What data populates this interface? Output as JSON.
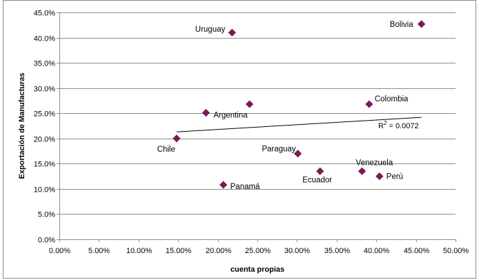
{
  "chart_data": {
    "type": "scatter",
    "xlabel": "cuenta propias",
    "ylabel": "Exportación de Manufacturas",
    "xlim": [
      0,
      0.5
    ],
    "ylim": [
      0,
      0.45
    ],
    "x_ticks": [
      "0.00%",
      "5.00%",
      "10.00%",
      "15.00%",
      "20.00%",
      "25.00%",
      "30.00%",
      "35.00%",
      "40.00%",
      "45.00%",
      "50.00%"
    ],
    "y_ticks": [
      "0.0%",
      "5.0%",
      "10.0%",
      "15.0%",
      "20.0%",
      "25.0%",
      "30.0%",
      "35.0%",
      "40.0%",
      "45.0%"
    ],
    "grid": {
      "horizontal": true,
      "vertical": false
    },
    "marker": {
      "shape": "diamond",
      "color": "#7b1a5a"
    },
    "points": [
      {
        "label": "Bolivia",
        "x": 0.457,
        "y": 0.427
      },
      {
        "label": "Uruguay",
        "x": 0.218,
        "y": 0.41
      },
      {
        "label": "Colombia",
        "x": 0.391,
        "y": 0.268
      },
      {
        "label": "Argentina",
        "x": 0.185,
        "y": 0.251
      },
      {
        "label": "",
        "x": 0.24,
        "y": 0.268
      },
      {
        "label": "Chile",
        "x": 0.148,
        "y": 0.2
      },
      {
        "label": "Paraguay",
        "x": 0.301,
        "y": 0.17
      },
      {
        "label": "Ecuador",
        "x": 0.329,
        "y": 0.135
      },
      {
        "label": "Venezuela",
        "x": 0.382,
        "y": 0.135
      },
      {
        "label": "Perú",
        "x": 0.404,
        "y": 0.125
      },
      {
        "label": "Panamá",
        "x": 0.207,
        "y": 0.108
      }
    ],
    "trendline": {
      "x": [
        0.148,
        0.457
      ],
      "y": [
        0.213,
        0.242
      ],
      "color": "#000000"
    },
    "annotation": {
      "r2_base": "R",
      "r2_exp": "2",
      "r2_value": " = 0.0072"
    }
  }
}
